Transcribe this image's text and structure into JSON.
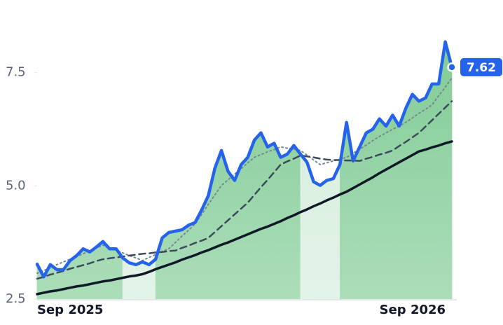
{
  "chart_data": {
    "type": "line",
    "categories": [
      "Sep 2025",
      null,
      null,
      null,
      null,
      null,
      null,
      null,
      null,
      null,
      null,
      null,
      null,
      null,
      null,
      null,
      null,
      null,
      null,
      null,
      null,
      null,
      null,
      null,
      null,
      null,
      null,
      null,
      null,
      null,
      null,
      null,
      null,
      null,
      null,
      null,
      null,
      null,
      null,
      null,
      null,
      null,
      null,
      null,
      null,
      null,
      null,
      null,
      null,
      null,
      null,
      null,
      "Sep 2026",
      null,
      null,
      null,
      null,
      null,
      null,
      null,
      null,
      null,
      null,
      null
    ],
    "series": [
      {
        "color": "#2563eb",
        "line_style": "solid",
        "width": 4.5,
        "area": true,
        "label_last": true,
        "values": [
          3.27,
          2.99,
          3.26,
          3.15,
          3.15,
          3.35,
          3.46,
          3.61,
          3.54,
          3.65,
          3.77,
          3.61,
          3.61,
          3.41,
          3.3,
          3.26,
          3.32,
          3.26,
          3.38,
          3.85,
          3.97,
          4.0,
          4.03,
          4.13,
          4.19,
          4.47,
          4.78,
          5.39,
          5.78,
          5.32,
          5.12,
          5.47,
          5.63,
          6.01,
          6.17,
          5.86,
          5.94,
          5.63,
          5.7,
          5.89,
          5.7,
          5.52,
          5.09,
          5.01,
          5.12,
          5.16,
          5.47,
          6.4,
          5.55,
          5.86,
          6.17,
          6.25,
          6.48,
          6.32,
          6.56,
          6.32,
          6.71,
          7.02,
          6.87,
          6.94,
          7.25,
          7.25,
          8.18,
          7.62
        ]
      },
      {
        "color": "#7a8696",
        "line_style": "dotted",
        "width": 2,
        "values": [
          3.07,
          3.13,
          3.19,
          3.26,
          3.32,
          3.38,
          3.44,
          3.5,
          3.57,
          3.63,
          3.69,
          3.63,
          3.58,
          3.52,
          3.46,
          3.41,
          3.35,
          3.42,
          3.48,
          3.55,
          3.61,
          3.75,
          3.89,
          4.02,
          4.16,
          4.37,
          4.59,
          4.8,
          5.01,
          5.13,
          5.26,
          5.38,
          5.51,
          5.63,
          5.69,
          5.75,
          5.8,
          5.86,
          5.83,
          5.81,
          5.78,
          5.68,
          5.57,
          5.47,
          5.51,
          5.55,
          5.59,
          5.63,
          5.72,
          5.81,
          5.9,
          6.0,
          6.09,
          6.17,
          6.25,
          6.32,
          6.4,
          6.5,
          6.6,
          6.69,
          6.79,
          6.99,
          7.18,
          7.38
        ]
      },
      {
        "color": "#3d4a5c",
        "line_style": "dashed",
        "width": 2.5,
        "values": [
          2.95,
          2.99,
          3.04,
          3.08,
          3.12,
          3.17,
          3.21,
          3.25,
          3.29,
          3.34,
          3.38,
          3.4,
          3.42,
          3.44,
          3.46,
          3.48,
          3.5,
          3.51,
          3.53,
          3.54,
          3.56,
          3.57,
          3.63,
          3.68,
          3.74,
          3.79,
          3.85,
          3.98,
          4.11,
          4.24,
          4.37,
          4.5,
          4.63,
          4.8,
          4.97,
          5.13,
          5.3,
          5.47,
          5.54,
          5.6,
          5.67,
          5.65,
          5.63,
          5.6,
          5.58,
          5.57,
          5.57,
          5.56,
          5.56,
          5.55,
          5.6,
          5.64,
          5.69,
          5.73,
          5.78,
          5.88,
          5.97,
          6.07,
          6.17,
          6.31,
          6.45,
          6.59,
          6.73,
          6.87
        ]
      },
      {
        "color": "#111827",
        "line_style": "solid",
        "width": 3.5,
        "values": [
          2.61,
          2.64,
          2.67,
          2.69,
          2.72,
          2.75,
          2.78,
          2.8,
          2.83,
          2.86,
          2.89,
          2.91,
          2.94,
          2.97,
          3.0,
          3.02,
          3.05,
          3.1,
          3.16,
          3.21,
          3.26,
          3.31,
          3.37,
          3.42,
          3.47,
          3.53,
          3.58,
          3.64,
          3.7,
          3.75,
          3.81,
          3.87,
          3.93,
          3.99,
          4.05,
          4.1,
          4.16,
          4.22,
          4.29,
          4.35,
          4.42,
          4.48,
          4.55,
          4.61,
          4.68,
          4.74,
          4.81,
          4.87,
          4.95,
          5.03,
          5.11,
          5.19,
          5.28,
          5.36,
          5.44,
          5.52,
          5.6,
          5.68,
          5.76,
          5.8,
          5.85,
          5.89,
          5.94,
          5.98
        ]
      }
    ],
    "ylim": [
      2.5,
      8.5
    ],
    "yticks": [
      2.5,
      {
        "value": 5,
        "label": "5.0"
      },
      7.5
    ],
    "area_colors": [
      "#7fcb94",
      "#d3eddb"
    ]
  }
}
